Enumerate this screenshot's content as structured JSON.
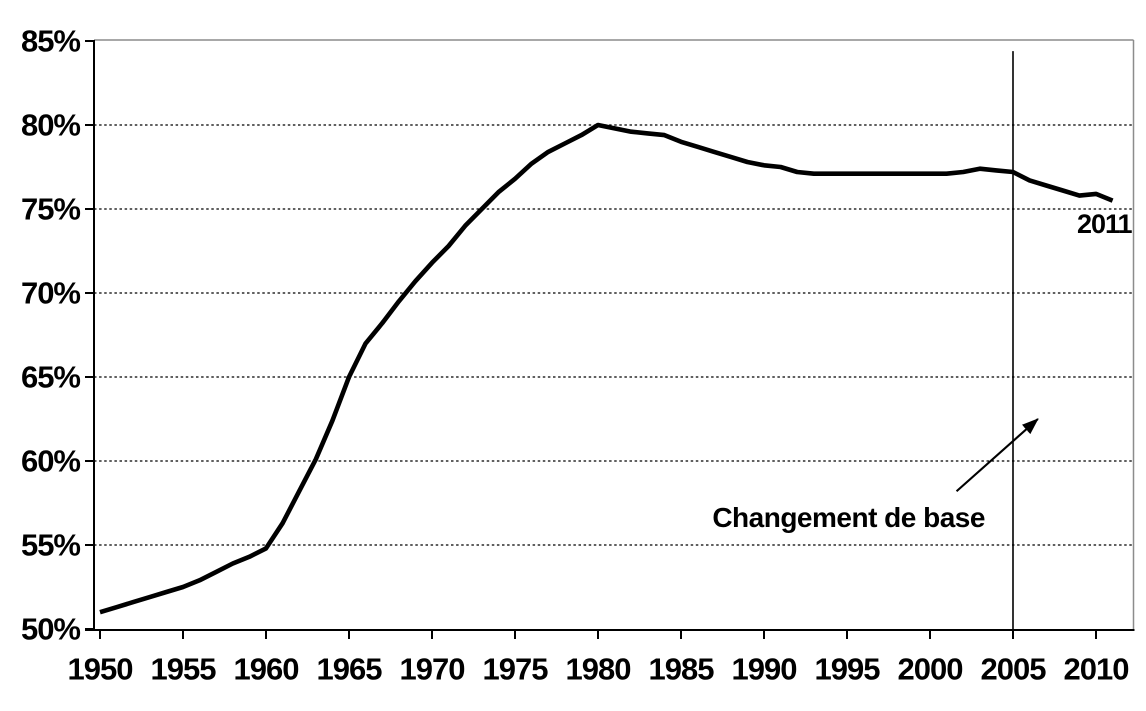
{
  "chart_data": {
    "type": "line",
    "title": "",
    "xlabel": "",
    "ylabel": "",
    "x": [
      1950,
      1951,
      1952,
      1953,
      1954,
      1955,
      1956,
      1957,
      1958,
      1959,
      1960,
      1961,
      1962,
      1963,
      1964,
      1965,
      1966,
      1967,
      1968,
      1969,
      1970,
      1971,
      1972,
      1973,
      1974,
      1975,
      1976,
      1977,
      1978,
      1979,
      1980,
      1981,
      1982,
      1983,
      1984,
      1985,
      1986,
      1987,
      1988,
      1989,
      1990,
      1991,
      1992,
      1993,
      1994,
      1995,
      1996,
      1997,
      1998,
      1999,
      2000,
      2001,
      2002,
      2003,
      2004,
      2005,
      2006,
      2007,
      2008,
      2009,
      2010,
      2011
    ],
    "values": [
      51.0,
      51.3,
      51.6,
      51.9,
      52.2,
      52.5,
      52.9,
      53.4,
      53.9,
      54.3,
      54.8,
      56.3,
      58.2,
      60.1,
      62.4,
      65.0,
      67.0,
      68.2,
      69.5,
      70.7,
      71.8,
      72.8,
      74.0,
      75.0,
      76.0,
      76.8,
      77.7,
      78.4,
      78.9,
      79.4,
      80.0,
      79.8,
      79.6,
      79.5,
      79.4,
      79.0,
      78.7,
      78.4,
      78.1,
      77.8,
      77.6,
      77.5,
      77.2,
      77.1,
      77.1,
      77.1,
      77.1,
      77.1,
      77.1,
      77.1,
      77.1,
      77.1,
      77.2,
      77.4,
      77.3,
      77.2,
      76.7,
      76.4,
      76.1,
      75.8,
      75.9,
      75.5
    ],
    "ylim": [
      50,
      85
    ],
    "xlim": [
      1950,
      2012
    ],
    "grid": {
      "horizontal_dotted": true,
      "vertical": false
    },
    "legend": {
      "visible": false
    },
    "y_axis": {
      "unit": "%",
      "ticks": [
        {
          "value": 85,
          "label": "85%"
        },
        {
          "value": 80,
          "label": "80%"
        },
        {
          "value": 75,
          "label": "75%"
        },
        {
          "value": 70,
          "label": "70%"
        },
        {
          "value": 65,
          "label": "65%"
        },
        {
          "value": 60,
          "label": "60%"
        },
        {
          "value": 55,
          "label": "55%"
        },
        {
          "value": 50,
          "label": "50%"
        }
      ]
    },
    "x_axis": {
      "ticks": [
        {
          "value": 1950,
          "label": "1950"
        },
        {
          "value": 1955,
          "label": "1955"
        },
        {
          "value": 1960,
          "label": "1960"
        },
        {
          "value": 1965,
          "label": "1965"
        },
        {
          "value": 1970,
          "label": "1970"
        },
        {
          "value": 1975,
          "label": "1975"
        },
        {
          "value": 1980,
          "label": "1980"
        },
        {
          "value": 1985,
          "label": "1985"
        },
        {
          "value": 1990,
          "label": "1990"
        },
        {
          "value": 1995,
          "label": "1995"
        },
        {
          "value": 2000,
          "label": "2000"
        },
        {
          "value": 2005,
          "label": "2005"
        },
        {
          "value": 2010,
          "label": "2010"
        }
      ]
    },
    "annotations": {
      "event_line": {
        "year": 2005,
        "value_top": 84.4,
        "value_bottom": 50
      },
      "event_label": {
        "text": "Changement de base",
        "anchor_year": 1995.1,
        "anchor_value": 56.65
      },
      "arrow": {
        "from_year": 2001.6,
        "from_value": 58.2,
        "to_year": 2006.5,
        "to_value": 62.5
      },
      "end_label": {
        "text": "2011",
        "anchor_year": 2010.5,
        "anchor_value": 74.1
      }
    },
    "colors": {
      "line": "#000000",
      "grid": "#000000",
      "axis": "#000000",
      "frame": "#8c8c8c",
      "text": "#000000",
      "background": "#ffffff"
    }
  }
}
